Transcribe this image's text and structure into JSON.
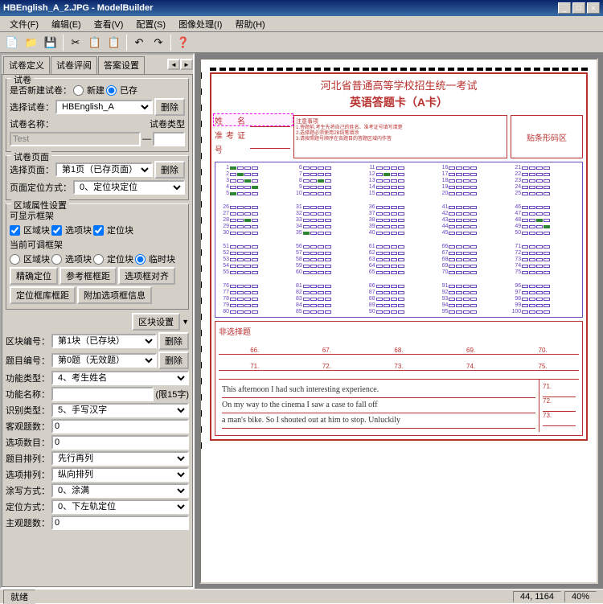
{
  "colors": {
    "titlebar_gradient_start": "#0a246a",
    "titlebar_gradient_end": "#3a6ea5",
    "window_bg": "#d4d0c8",
    "border_dark": "#808080",
    "sheet_red": "#b8312f",
    "bubble_purple": "#6b46c1",
    "filled_green": "#2d8633",
    "overlay_magenta": "#ff00ff"
  },
  "title": "HBEnglish_A_2.JPG - ModelBuilder",
  "win_buttons": {
    "min": "_",
    "max": "□",
    "close": "×"
  },
  "menu": [
    "文件(F)",
    "编辑(E)",
    "查看(V)",
    "配置(S)",
    "图像处理(I)",
    "帮助(H)"
  ],
  "toolbar_icons": [
    "📄",
    "📁",
    "💾",
    "|",
    "✂",
    "📋",
    "📋",
    "|",
    "↶",
    "↷",
    "|",
    "❓"
  ],
  "tabs": [
    "试卷定义",
    "试卷评阅",
    "答案设置"
  ],
  "left": {
    "group1_title": "试卷",
    "new_or_exist_label": "是否新建试卷：",
    "opt_new": "新建",
    "opt_exist": "已存",
    "select_paper_label": "选择试卷：",
    "paper_combo": "HBEnglish_A",
    "del_btn": "删除",
    "paper_name_label": "试卷名称：",
    "paper_name_value": "Test",
    "dash": "—",
    "paper_type_label": "试卷类型",
    "group2_title": "试卷页面",
    "select_page_label": "选择页面：",
    "page_combo": "第1页（已存页面）",
    "page_loc_label": "页面定位方式：",
    "page_loc_combo": "0、定位块定位",
    "group3_title": "区域属性设置",
    "show_frame_label": "可显示框架",
    "chk_region": "区域块",
    "chk_option": "选项块",
    "chk_locate": "定位块",
    "adjust_frame_label": "当前可调框架",
    "rad_region": "区域块",
    "rad_option": "选项块",
    "rad_locate": "定位块",
    "rad_temp": "临时块",
    "btn_fine_locate": "精确定位",
    "btn_ref_frame": "参考框框距",
    "btn_item_align": "选项框对齐",
    "btn_locate_dist": "定位框库框距",
    "btn_append": "附加选项框信息",
    "region_setting_btn": "区块设置",
    "region_num_label": "区块编号：",
    "region_num_combo": "第1块（已存块）",
    "question_num_label": "题目编号：",
    "question_num_combo": "第0题（无效题）",
    "func_type_label": "功能类型：",
    "func_type_combo": "4、考生姓名",
    "func_name_label": "功能名称：",
    "func_name_hint": "(限15字)",
    "recog_type_label": "识别类型：",
    "recog_type_combo": "5、手写汉字",
    "objective_label": "客观题数：",
    "objective_val": "0",
    "option_count_label": "选项数目：",
    "option_count_val": "0",
    "question_arr_label": "题目排列：",
    "question_arr_combo": "先行再列",
    "option_arr_label": "选项排列：",
    "option_arr_combo": "纵向排列",
    "smear_label": "涂写方式：",
    "smear_combo": "0、涂满",
    "locate_label": "定位方式：",
    "locate_combo": "0、下左轨定位",
    "subj_label": "主观题数：",
    "subj_val": "0"
  },
  "sheet": {
    "title": "河北省普通高等学校招生统一考试",
    "subtitle": "英语答题卡（A卡）",
    "name_label": "姓　名",
    "id_label": "准考证号",
    "hdr_mid_title": "注意事项",
    "barcode_label": "贴条形码区",
    "essay_title": "非选择题",
    "essay_nums1": [
      "66.",
      "67.",
      "68.",
      "69.",
      "70."
    ],
    "essay_nums2": [
      "71.",
      "72.",
      "73.",
      "74.",
      "75."
    ],
    "essay_text1": "This afternoon I had such interesting experience.",
    "essay_text2": "On my way to the cinema I saw a case to fall off",
    "essay_text3": "a man's bike. So I shouted out at him to stop. Unluckily",
    "essay_right1": "71.",
    "essay_right2": "72.",
    "essay_right3": "73."
  },
  "bubble_layout": {
    "blocks_per_row": 5,
    "rows": 4,
    "questions_per_block": 5,
    "options_per_question": 4
  },
  "status": {
    "ready": "就绪",
    "coord": "44, 1164",
    "zoom": "40%"
  }
}
